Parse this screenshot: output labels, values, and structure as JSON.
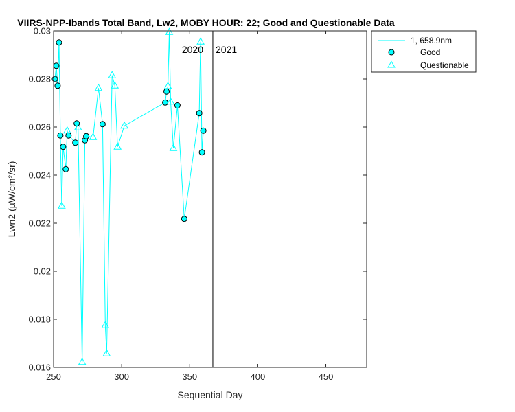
{
  "chart_data": {
    "type": "scatter",
    "title": "VIIRS-NPP-Ibands Total Band, Lw2, MOBY HOUR: 22;  Good and Questionable Data",
    "xlabel": "Sequential Day",
    "ylabel": "Lwn2 (µW/cm²/sr)",
    "xlim": [
      250,
      480
    ],
    "ylim": [
      0.016,
      0.03
    ],
    "xticks": [
      250,
      300,
      350,
      400,
      450
    ],
    "xtick_labels": [
      "250",
      "300",
      "350",
      "400",
      "450"
    ],
    "yticks": [
      0.016,
      0.018,
      0.02,
      0.022,
      0.024,
      0.026,
      0.028,
      0.03
    ],
    "ytick_labels": [
      "0.016",
      "0.018",
      "0.02",
      "0.022",
      "0.024",
      "0.026",
      "0.028",
      "0.03"
    ],
    "grid": false,
    "legend_position": "outside-top-right",
    "colors": {
      "series": "#00FFFF",
      "marker_edge_good": "#000000",
      "axis": "#262626"
    },
    "year_divider": {
      "x": 367,
      "left_label": "2020",
      "right_label": "2021"
    },
    "series": [
      {
        "name": "1, 658.9nm",
        "kind": "line",
        "x": [
          251,
          252,
          253,
          254,
          255,
          256,
          257,
          259,
          260,
          261,
          266,
          267,
          268,
          271,
          273,
          274,
          279,
          283,
          286,
          288,
          289,
          293,
          295,
          297,
          302,
          332,
          333,
          334,
          335,
          336,
          338,
          341,
          346,
          357,
          358,
          359,
          360
        ],
        "y": [
          0.028,
          0.02855,
          0.02772,
          0.02952,
          0.02565,
          0.02272,
          0.02518,
          0.02425,
          0.02585,
          0.02565,
          0.02535,
          0.02615,
          0.02598,
          0.01622,
          0.02545,
          0.02562,
          0.02558,
          0.02762,
          0.02612,
          0.01775,
          0.01658,
          0.02815,
          0.02772,
          0.02518,
          0.02605,
          0.02702,
          0.02748,
          0.0277,
          0.02995,
          0.02705,
          0.02512,
          0.0269,
          0.02218,
          0.02658,
          0.02955,
          0.02495,
          0.02585
        ]
      },
      {
        "name": "Good",
        "kind": "marker-circle",
        "x": [
          251,
          252,
          253,
          254,
          255,
          257,
          259,
          261,
          266,
          267,
          273,
          274,
          286,
          332,
          333,
          341,
          346,
          357,
          359,
          360
        ],
        "y": [
          0.028,
          0.02855,
          0.02772,
          0.02952,
          0.02565,
          0.02518,
          0.02425,
          0.02565,
          0.02535,
          0.02615,
          0.02545,
          0.02562,
          0.02612,
          0.02702,
          0.02748,
          0.0269,
          0.02218,
          0.02658,
          0.02495,
          0.02585
        ]
      },
      {
        "name": "Questionable",
        "kind": "marker-triangle",
        "x": [
          256,
          260,
          268,
          271,
          279,
          283,
          288,
          289,
          293,
          295,
          297,
          302,
          334,
          335,
          336,
          338,
          358
        ],
        "y": [
          0.02272,
          0.02585,
          0.02598,
          0.01622,
          0.02558,
          0.02762,
          0.01775,
          0.01658,
          0.02815,
          0.02772,
          0.02518,
          0.02605,
          0.0277,
          0.02995,
          0.02705,
          0.02512,
          0.02955
        ]
      }
    ]
  }
}
